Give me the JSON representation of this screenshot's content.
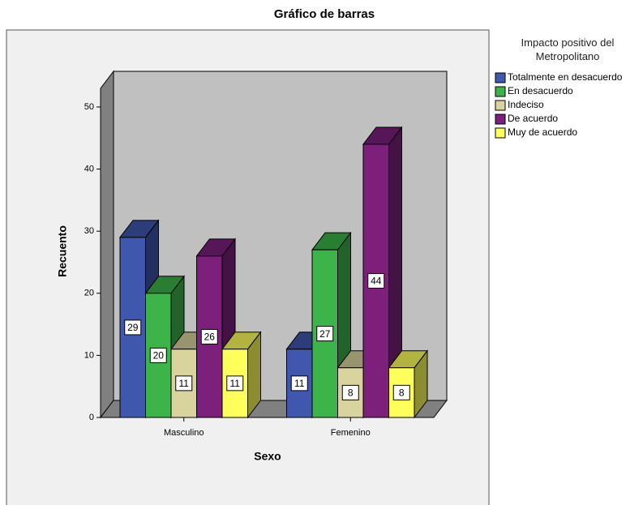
{
  "chart_data": {
    "type": "bar3d",
    "title": "Gráfico de barras",
    "x_label": "Sexo",
    "y_label": "Recuento",
    "legend_title": "Impacto positivo del Metropolitano",
    "categories": [
      "Masculino",
      "Femenino"
    ],
    "series": [
      {
        "name": "Totalmente en desacuerdo",
        "color": "#3f57ad",
        "values": [
          29,
          11
        ]
      },
      {
        "name": "En desacuerdo",
        "color": "#3cb44a",
        "values": [
          20,
          27
        ]
      },
      {
        "name": "Indeciso",
        "color": "#d9d39d",
        "values": [
          11,
          8
        ]
      },
      {
        "name": "De acuerdo",
        "color": "#7c207c",
        "values": [
          26,
          44
        ]
      },
      {
        "name": "Muy de acuerdo",
        "color": "#ffff5c",
        "values": [
          11,
          8
        ]
      }
    ],
    "ylim": [
      0,
      53
    ],
    "yticks": [
      0,
      10,
      20,
      30,
      40,
      50
    ],
    "legend": "right"
  }
}
